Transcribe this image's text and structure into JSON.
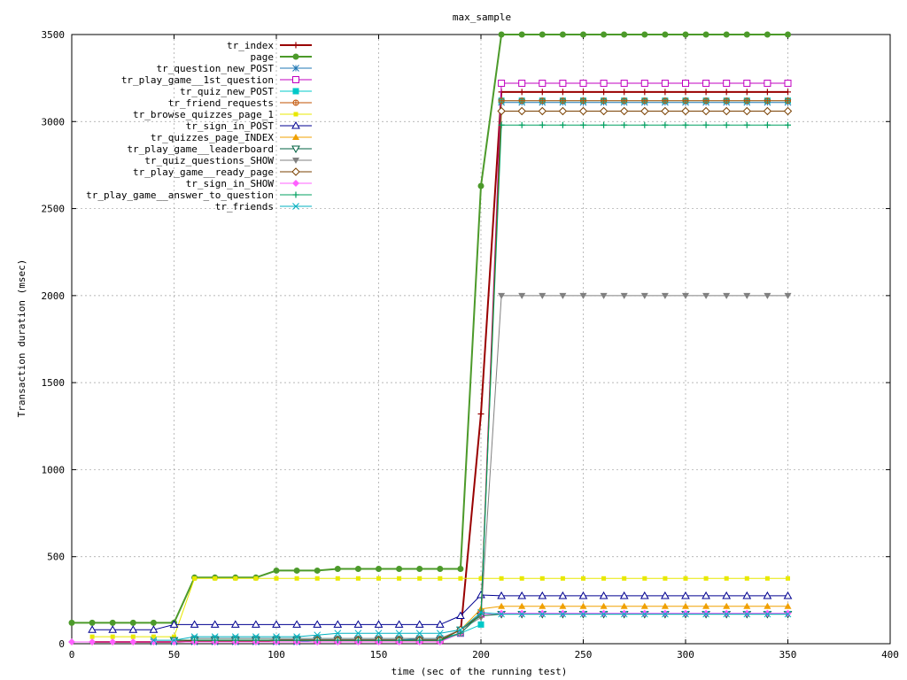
{
  "chart_data": {
    "type": "line",
    "title": "max_sample",
    "xlabel": "time (sec of the running test)",
    "ylabel": "Transaction duration (msec)",
    "xlim": [
      0,
      400
    ],
    "ylim": [
      0,
      3500
    ],
    "xticks": [
      0,
      50,
      100,
      150,
      200,
      250,
      300,
      350,
      400
    ],
    "yticks": [
      0,
      500,
      1000,
      1500,
      2000,
      2500,
      3000,
      3500
    ],
    "grid": true,
    "legend_position": "top-left",
    "x": [
      0,
      10,
      20,
      30,
      40,
      50,
      60,
      70,
      80,
      90,
      100,
      110,
      120,
      130,
      140,
      150,
      160,
      170,
      180,
      190,
      200,
      210,
      220,
      230,
      240,
      250,
      260,
      270,
      280,
      290,
      300,
      310,
      320,
      330,
      340,
      350
    ],
    "series": [
      {
        "name": "tr_index",
        "color": "#990000",
        "marker": "plus",
        "lw": 2,
        "values": [
          null,
          10,
          10,
          10,
          10,
          10,
          15,
          15,
          15,
          15,
          20,
          20,
          20,
          20,
          20,
          20,
          20,
          20,
          20,
          60,
          1320,
          3170,
          3170,
          3170,
          3170,
          3170,
          3170,
          3170,
          3170,
          3170,
          3170,
          3170,
          3170,
          3170,
          3170,
          3170
        ]
      },
      {
        "name": "page",
        "color": "#4c9a2a",
        "marker": "filled-circle",
        "lw": 2,
        "values": [
          120,
          120,
          120,
          120,
          120,
          120,
          380,
          380,
          380,
          380,
          420,
          420,
          420,
          430,
          430,
          430,
          430,
          430,
          430,
          430,
          2630,
          3500,
          3500,
          3500,
          3500,
          3500,
          3500,
          3500,
          3500,
          3500,
          3500,
          3500,
          3500,
          3500,
          3500,
          3500
        ]
      },
      {
        "name": "tr_question_new_POST",
        "color": "#1f77b4",
        "marker": "star",
        "lw": 1,
        "values": [
          null,
          null,
          null,
          null,
          10,
          10,
          10,
          10,
          10,
          10,
          10,
          10,
          20,
          20,
          20,
          20,
          20,
          30,
          30,
          60,
          170,
          3110,
          3110,
          3110,
          3110,
          3110,
          3110,
          3110,
          3110,
          3110,
          3110,
          3110,
          3110,
          3110,
          3110,
          3110
        ]
      },
      {
        "name": "tr_play_game__1st_question",
        "color": "#c000c0",
        "marker": "open-square",
        "lw": 1,
        "values": [
          null,
          null,
          null,
          null,
          null,
          null,
          20,
          20,
          20,
          20,
          20,
          20,
          20,
          20,
          20,
          20,
          20,
          20,
          20,
          60,
          170,
          3220,
          3220,
          3220,
          3220,
          3220,
          3220,
          3220,
          3220,
          3220,
          3220,
          3220,
          3220,
          3220,
          3220,
          3220
        ]
      },
      {
        "name": "tr_quiz_new_POST",
        "color": "#00c8c8",
        "marker": "filled-square",
        "lw": 1,
        "values": [
          null,
          null,
          null,
          null,
          null,
          null,
          30,
          30,
          30,
          30,
          30,
          30,
          30,
          30,
          30,
          30,
          30,
          30,
          30,
          60,
          110,
          3120,
          3120,
          3120,
          3120,
          3120,
          3120,
          3120,
          3120,
          3120,
          3120,
          3120,
          3120,
          3120,
          3120,
          3120
        ]
      },
      {
        "name": "tr_friend_requests",
        "color": "#c05000",
        "marker": "circle-plus",
        "lw": 1,
        "values": [
          null,
          null,
          null,
          null,
          null,
          null,
          20,
          20,
          20,
          20,
          20,
          20,
          20,
          20,
          20,
          20,
          20,
          20,
          20,
          60,
          170,
          3120,
          3120,
          3120,
          3120,
          3120,
          3120,
          3120,
          3120,
          3120,
          3120,
          3120,
          3120,
          3120,
          3120,
          3120
        ]
      },
      {
        "name": "tr_browse_quizzes_page_1",
        "color": "#e8e800",
        "marker": "filled-square-small",
        "lw": 1,
        "values": [
          null,
          40,
          40,
          40,
          40,
          40,
          375,
          375,
          375,
          375,
          375,
          375,
          375,
          375,
          375,
          375,
          375,
          375,
          375,
          375,
          375,
          375,
          375,
          375,
          375,
          375,
          375,
          375,
          375,
          375,
          375,
          375,
          375,
          375,
          375,
          375
        ]
      },
      {
        "name": "tr_sign_in_POST",
        "color": "#000090",
        "marker": "open-triangle",
        "lw": 1,
        "values": [
          null,
          80,
          80,
          80,
          80,
          110,
          110,
          110,
          110,
          110,
          110,
          110,
          110,
          110,
          110,
          110,
          110,
          110,
          110,
          160,
          280,
          275,
          275,
          275,
          275,
          275,
          275,
          275,
          275,
          275,
          275,
          275,
          275,
          275,
          275,
          275
        ]
      },
      {
        "name": "tr_quizzes_page_INDEX",
        "color": "#f0a000",
        "marker": "filled-triangle",
        "lw": 1,
        "values": [
          null,
          null,
          null,
          null,
          null,
          20,
          20,
          20,
          20,
          20,
          20,
          20,
          20,
          20,
          20,
          20,
          20,
          20,
          20,
          80,
          200,
          215,
          215,
          215,
          215,
          215,
          215,
          215,
          215,
          215,
          215,
          215,
          215,
          215,
          215,
          215
        ]
      },
      {
        "name": "tr_play_game__leaderboard",
        "color": "#006040",
        "marker": "open-triangle-down",
        "lw": 1,
        "values": [
          null,
          null,
          null,
          null,
          null,
          20,
          20,
          20,
          20,
          20,
          20,
          20,
          20,
          20,
          20,
          20,
          20,
          20,
          20,
          80,
          160,
          170,
          170,
          170,
          170,
          170,
          170,
          170,
          170,
          170,
          170,
          170,
          170,
          170,
          170,
          170
        ]
      },
      {
        "name": "tr_quiz_questions_SHOW",
        "color": "#808080",
        "marker": "filled-triangle-down",
        "lw": 1,
        "values": [
          null,
          null,
          null,
          null,
          null,
          null,
          30,
          30,
          30,
          30,
          30,
          30,
          30,
          30,
          30,
          30,
          30,
          30,
          30,
          80,
          150,
          2000,
          2000,
          2000,
          2000,
          2000,
          2000,
          2000,
          2000,
          2000,
          2000,
          2000,
          2000,
          2000,
          2000,
          2000
        ]
      },
      {
        "name": "tr_play_game__ready_page",
        "color": "#7a4000",
        "marker": "open-diamond",
        "lw": 1,
        "values": [
          null,
          null,
          null,
          null,
          null,
          null,
          20,
          20,
          20,
          20,
          20,
          20,
          20,
          20,
          20,
          20,
          20,
          20,
          20,
          80,
          170,
          3060,
          3060,
          3060,
          3060,
          3060,
          3060,
          3060,
          3060,
          3060,
          3060,
          3060,
          3060,
          3060,
          3060,
          3060
        ]
      },
      {
        "name": "tr_sign_in_SHOW",
        "color": "#ff60ff",
        "marker": "filled-diamond",
        "lw": 1,
        "values": [
          10,
          10,
          10,
          10,
          10,
          10,
          10,
          10,
          10,
          10,
          10,
          10,
          10,
          10,
          10,
          10,
          10,
          10,
          10,
          60,
          170,
          175,
          175,
          175,
          175,
          175,
          175,
          175,
          175,
          175,
          175,
          175,
          175,
          175,
          175,
          175
        ]
      },
      {
        "name": "tr_play_game__answer_to_question",
        "color": "#00a060",
        "marker": "plus",
        "lw": 1,
        "values": [
          null,
          null,
          null,
          null,
          null,
          null,
          20,
          20,
          20,
          20,
          20,
          20,
          20,
          20,
          20,
          20,
          20,
          20,
          20,
          60,
          170,
          2980,
          2980,
          2980,
          2980,
          2980,
          2980,
          2980,
          2980,
          2980,
          2980,
          2980,
          2980,
          2980,
          2980,
          2980
        ]
      },
      {
        "name": "tr_friends",
        "color": "#00b0c0",
        "marker": "cross",
        "lw": 1,
        "values": [
          null,
          null,
          null,
          null,
          20,
          20,
          40,
          40,
          40,
          40,
          40,
          40,
          50,
          60,
          60,
          60,
          60,
          60,
          60,
          80,
          180,
          170,
          170,
          170,
          170,
          170,
          170,
          170,
          170,
          170,
          170,
          170,
          170,
          170,
          170,
          170
        ]
      }
    ]
  }
}
